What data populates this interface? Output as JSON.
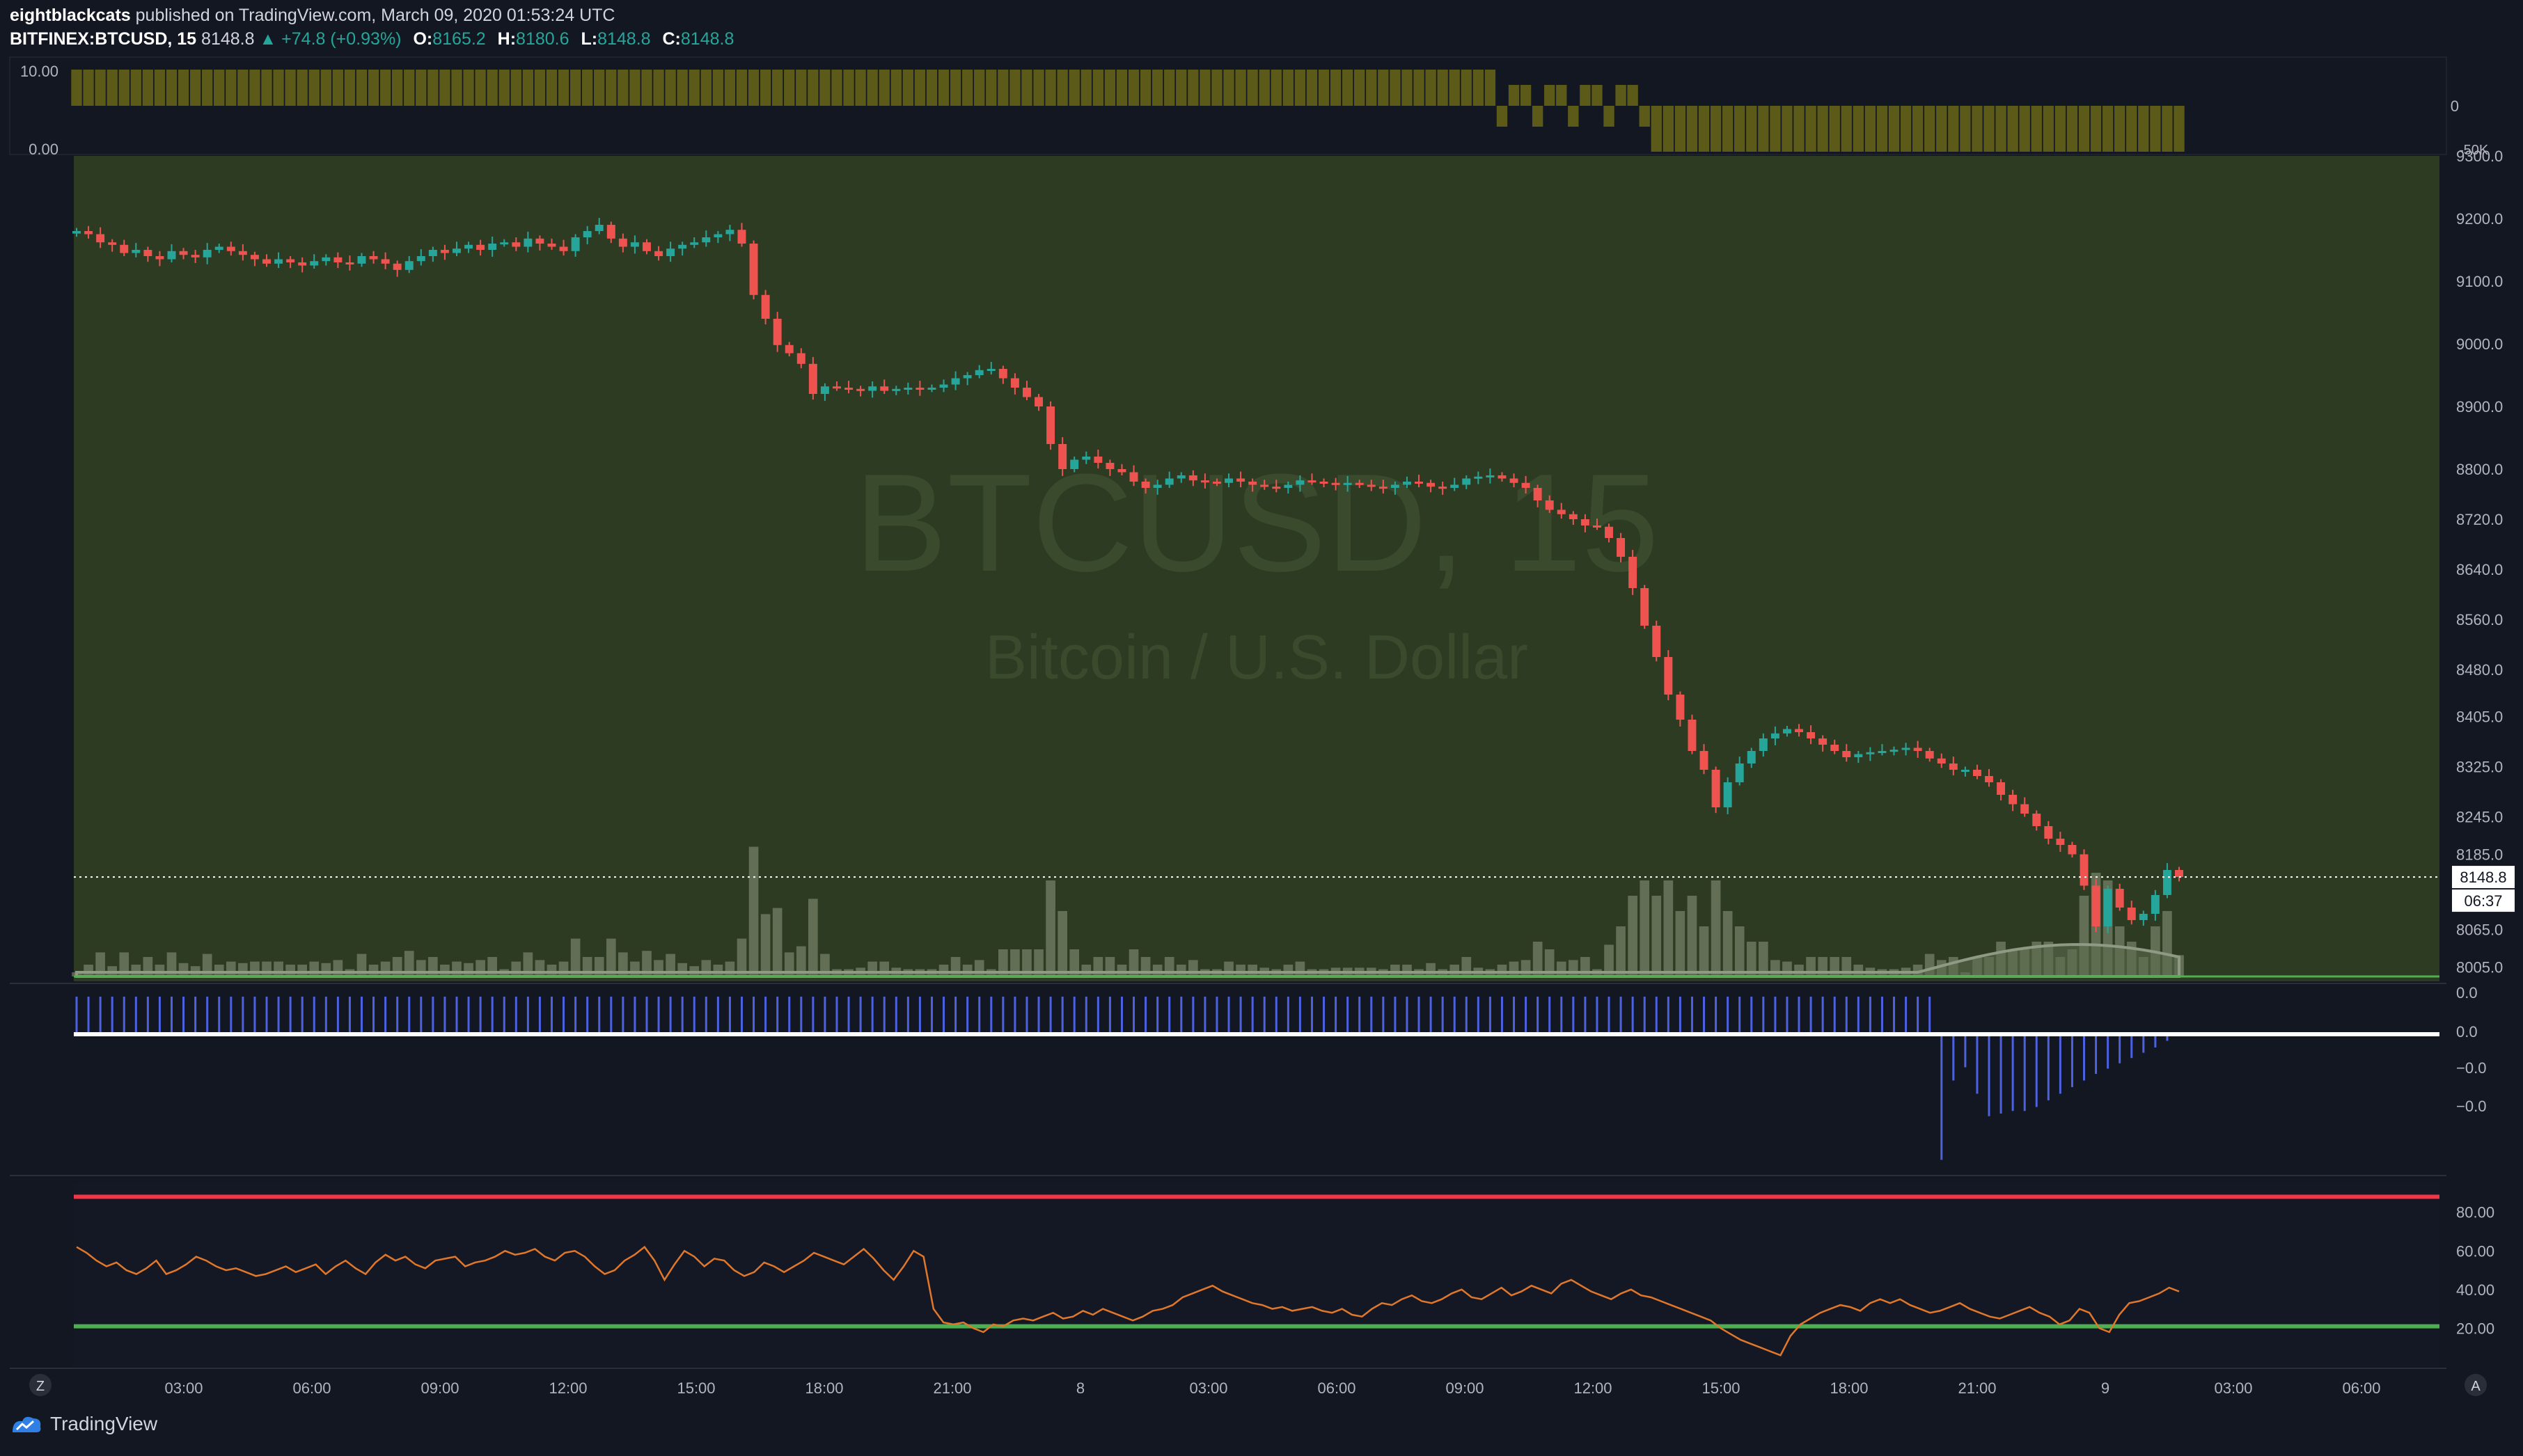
{
  "header": {
    "publisher": "eightblackcats",
    "published_text": "published on TradingView.com, March 09, 2020 01:53:24 UTC",
    "symbol": "BITFINEX:BTCUSD, 15",
    "last": "8148.8",
    "change": "▲ +74.8 (+0.93%)",
    "open_label": "O:",
    "open": "8165.2",
    "high_label": "H:",
    "high": "8180.6",
    "low_label": "L:",
    "low": "8148.8",
    "close_label": "C:",
    "close": "8148.8"
  },
  "watermark": {
    "title": "BTCUSD, 15",
    "subtitle": "Bitcoin / U.S. Dollar"
  },
  "top_pane": {
    "axis_left": [
      "10.00",
      "0.00"
    ],
    "axis_right": [
      "0",
      "-50K"
    ]
  },
  "footer": {
    "brand": "TradingView",
    "scale_button": "Z",
    "auto_button": "A"
  },
  "colors": {
    "bg": "#131722",
    "price_bg": "#2e3b23",
    "up": "#26a69a",
    "down": "#ef5350",
    "osc": "#4d62e0",
    "rsi": "#e0772a",
    "level_hi": "#f23645",
    "level_lo": "#4caf50",
    "olive": "#5b5a19"
  },
  "chart_data": [
    {
      "type": "candlestick",
      "title": "BITFINEX:BTCUSD, 15",
      "x_ticks": [
        "03:00",
        "06:00",
        "09:00",
        "12:00",
        "15:00",
        "18:00",
        "21:00",
        "8",
        "03:00",
        "06:00",
        "09:00",
        "12:00",
        "15:00",
        "18:00",
        "21:00",
        "9",
        "03:00",
        "06:00"
      ],
      "y_ticks": [
        "9300.0",
        "9200.0",
        "9100.0",
        "9000.0",
        "8900.0",
        "8800.0",
        "8720.0",
        "8640.0",
        "8560.0",
        "8480.0",
        "8405.0",
        "8325.0",
        "8245.0",
        "8185.0",
        "8065.0",
        "8005.0"
      ],
      "ylim": [
        7990,
        9300
      ],
      "last_price_label": "8148.8",
      "countdown": "06:37",
      "close_series": [
        9180,
        9175,
        9162,
        9158,
        9145,
        9150,
        9140,
        9135,
        9148,
        9142,
        9138,
        9150,
        9155,
        9148,
        9142,
        9135,
        9128,
        9135,
        9130,
        9125,
        9132,
        9138,
        9130,
        9128,
        9140,
        9135,
        9128,
        9118,
        9132,
        9140,
        9150,
        9145,
        9152,
        9158,
        9150,
        9160,
        9162,
        9155,
        9168,
        9160,
        9155,
        9148,
        9170,
        9180,
        9190,
        9168,
        9155,
        9162,
        9148,
        9140,
        9152,
        9158,
        9162,
        9170,
        9175,
        9182,
        9160,
        9078,
        9040,
        8998,
        8985,
        8968,
        8920,
        8932,
        8930,
        8928,
        8925,
        8932,
        8925,
        8928,
        8930,
        8928,
        8930,
        8935,
        8945,
        8950,
        8958,
        8960,
        8945,
        8930,
        8915,
        8900,
        8840,
        8800,
        8815,
        8820,
        8810,
        8800,
        8795,
        8780,
        8770,
        8775,
        8785,
        8790,
        8782,
        8780,
        8778,
        8785,
        8780,
        8775,
        8772,
        8770,
        8775,
        8782,
        8780,
        8778,
        8775,
        8778,
        8775,
        8772,
        8770,
        8775,
        8780,
        8778,
        8772,
        8770,
        8775,
        8785,
        8788,
        8790,
        8785,
        8778,
        8770,
        8750,
        8735,
        8728,
        8720,
        8710,
        8708,
        8690,
        8660,
        8610,
        8550,
        8500,
        8440,
        8400,
        8350,
        8320,
        8260,
        8300,
        8330,
        8350,
        8370,
        8378,
        8385,
        8380,
        8370,
        8360,
        8350,
        8340,
        8345,
        8348,
        8350,
        8352,
        8355,
        8350,
        8338,
        8330,
        8320,
        8320,
        8310,
        8300,
        8280,
        8265,
        8250,
        8230,
        8210,
        8200,
        8185,
        8135,
        8070,
        8130,
        8100,
        8080,
        8090,
        8120,
        8160,
        8148.8
      ]
    },
    {
      "type": "bar",
      "name": "volume-profile-olive",
      "axis_ticks": [
        "10.00",
        "0.00",
        "0",
        "-50K"
      ]
    },
    {
      "type": "bar",
      "name": "oscillator",
      "y_ticks": [
        "0.0",
        "0.0",
        "−0.0",
        "−0.0"
      ],
      "negative_values": [
        -0.95,
        -0.35,
        -0.25,
        -0.45,
        -0.62,
        -0.6,
        -0.58,
        -0.58,
        -0.55,
        -0.5,
        -0.45,
        -0.4,
        -0.35,
        -0.3,
        -0.26,
        -0.22,
        -0.18,
        -0.14,
        -0.1,
        -0.05
      ]
    },
    {
      "type": "line",
      "name": "rsi",
      "y_ticks": [
        "80.00",
        "60.00",
        "40.00",
        "20.00"
      ],
      "ylim": [
        0,
        95
      ],
      "levels": [
        88,
        21
      ],
      "values": [
        62,
        59,
        55,
        52,
        54,
        50,
        48,
        51,
        55,
        48,
        50,
        53,
        57,
        55,
        52,
        50,
        51,
        49,
        47,
        48,
        50,
        52,
        49,
        51,
        53,
        48,
        52,
        55,
        51,
        48,
        54,
        58,
        55,
        57,
        53,
        51,
        55,
        56,
        57,
        52,
        54,
        55,
        57,
        60,
        58,
        59,
        61,
        57,
        55,
        59,
        60,
        57,
        52,
        48,
        50,
        55,
        58,
        62,
        55,
        45,
        53,
        60,
        57,
        52,
        56,
        55,
        50,
        47,
        49,
        54,
        52,
        49,
        52,
        55,
        59,
        57,
        55,
        53,
        57,
        61,
        56,
        50,
        45,
        52,
        60,
        57,
        30,
        23,
        22,
        23,
        20,
        18,
        22,
        21,
        24,
        25,
        24,
        26,
        28,
        25,
        26,
        29,
        27,
        30,
        28,
        26,
        24,
        26,
        29,
        30,
        32,
        36,
        38,
        40,
        42,
        39,
        37,
        35,
        33,
        32,
        30,
        31,
        29,
        30,
        31,
        29,
        28,
        30,
        27,
        26,
        30,
        33,
        32,
        35,
        37,
        34,
        33,
        35,
        38,
        40,
        36,
        35,
        38,
        41,
        37,
        39,
        42,
        40,
        38,
        43,
        45,
        42,
        39,
        37,
        35,
        38,
        40,
        37,
        36,
        34,
        32,
        30,
        28,
        26,
        24,
        20,
        17,
        14,
        12,
        10,
        8,
        6,
        16,
        22,
        25,
        28,
        30,
        32,
        31,
        29,
        33,
        35,
        33,
        35,
        32,
        30,
        28,
        29,
        31,
        33,
        30,
        28,
        26,
        25,
        27,
        29,
        31,
        28,
        26,
        22,
        24,
        30,
        28,
        20,
        18,
        27,
        33,
        34,
        36,
        38,
        41,
        39
      ]
    }
  ]
}
